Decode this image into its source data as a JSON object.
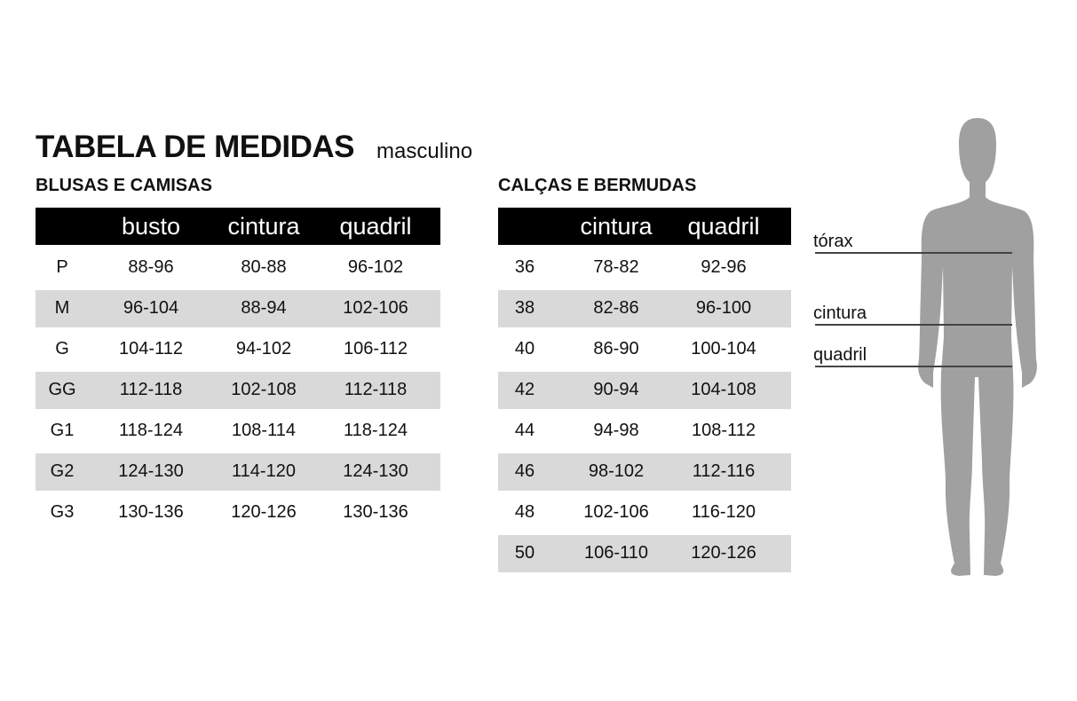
{
  "title": "TABELA DE MEDIDAS",
  "subtitle": "masculino",
  "shirts": {
    "heading": "BLUSAS E CAMISAS",
    "columns": [
      "",
      "busto",
      "cintura",
      "quadril"
    ],
    "rows": [
      [
        "P",
        "88-96",
        "80-88",
        "96-102"
      ],
      [
        "M",
        "96-104",
        "88-94",
        "102-106"
      ],
      [
        "G",
        "104-112",
        "94-102",
        "106-112"
      ],
      [
        "GG",
        "112-118",
        "102-108",
        "112-118"
      ],
      [
        "G1",
        "118-124",
        "108-114",
        "118-124"
      ],
      [
        "G2",
        "124-130",
        "114-120",
        "124-130"
      ],
      [
        "G3",
        "130-136",
        "120-126",
        "130-136"
      ]
    ]
  },
  "pants": {
    "heading": "CALÇAS E BERMUDAS",
    "columns": [
      "",
      "cintura",
      "quadril"
    ],
    "rows": [
      [
        "36",
        "78-82",
        "92-96"
      ],
      [
        "38",
        "82-86",
        "96-100"
      ],
      [
        "40",
        "86-90",
        "100-104"
      ],
      [
        "42",
        "90-94",
        "104-108"
      ],
      [
        "44",
        "94-98",
        "108-112"
      ],
      [
        "46",
        "98-102",
        "112-116"
      ],
      [
        "48",
        "102-106",
        "116-120"
      ],
      [
        "50",
        "106-110",
        "120-126"
      ]
    ]
  },
  "figure": {
    "labels": {
      "chest": "tórax",
      "waist": "cintura",
      "hip": "quadril"
    },
    "color": "#a0a0a0"
  }
}
